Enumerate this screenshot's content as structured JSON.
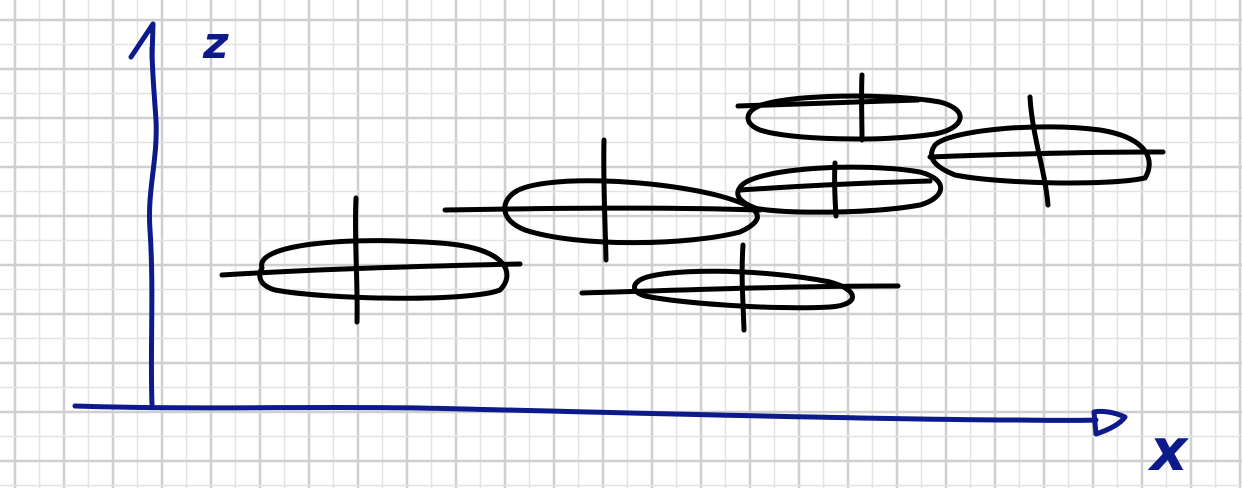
{
  "diagram": {
    "axes": {
      "vertical_label": "z",
      "horizontal_label": "x",
      "color": "#0d1a8c"
    },
    "ink_color": "#000000",
    "grid": {
      "minor_color": "#e3e3e3",
      "major_color": "#cfcfcf"
    },
    "ellipses": [
      {
        "id": "e1"
      },
      {
        "id": "e2"
      },
      {
        "id": "e3"
      },
      {
        "id": "e4"
      },
      {
        "id": "e5"
      },
      {
        "id": "e6"
      }
    ]
  }
}
